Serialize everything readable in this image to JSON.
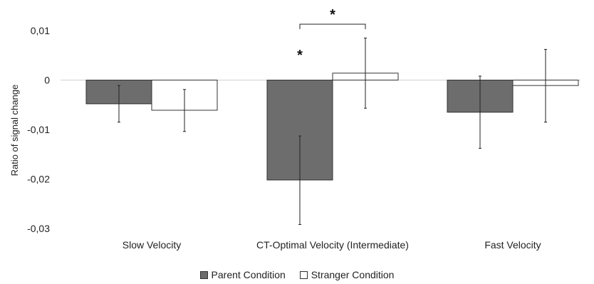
{
  "chart_data": {
    "type": "bar",
    "title": "",
    "xlabel": "",
    "ylabel": "Ratio of signal change",
    "ylim": [
      -0.03,
      0.01
    ],
    "yticks": [
      "0,01",
      "0",
      "-0,01",
      "-0,02",
      "-0,03"
    ],
    "ytick_values": [
      0.01,
      0,
      -0.01,
      -0.02,
      -0.03
    ],
    "categories": [
      "Slow Velocity",
      "CT-Optimal Velocity (Intermediate)",
      "Fast Velocity"
    ],
    "series": [
      {
        "name": "Parent Condition",
        "color": "#6d6d6d",
        "values": [
          -0.0048,
          -0.0202,
          -0.0065
        ],
        "error_low": [
          -0.0085,
          -0.0292,
          -0.0138
        ],
        "error_high": [
          -0.0011,
          -0.0113,
          0.0008
        ]
      },
      {
        "name": "Stranger Condition",
        "color": "#ffffff",
        "values": [
          -0.0061,
          0.0014,
          -0.0011
        ],
        "error_low": [
          -0.0104,
          -0.0057,
          -0.0085
        ],
        "error_high": [
          -0.0019,
          0.0085,
          0.0062
        ]
      }
    ],
    "annotations": {
      "star_on_bar": "*",
      "bracket_star": "*"
    },
    "grid": false,
    "legend_position": "bottom"
  }
}
